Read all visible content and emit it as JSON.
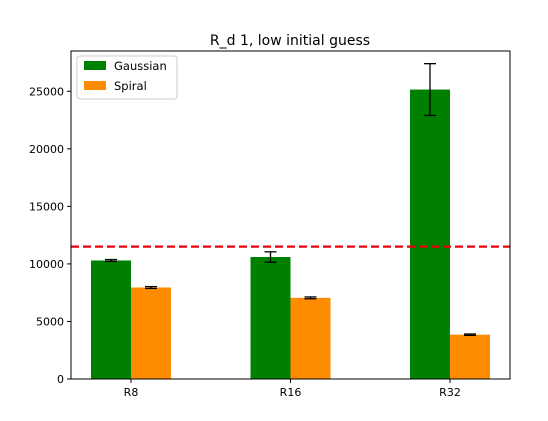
{
  "chart_data": {
    "type": "bar",
    "title": "R_d 1, low initial guess",
    "xlabel": "",
    "ylabel": "",
    "categories": [
      "R8",
      "R16",
      "R32"
    ],
    "series": [
      {
        "name": "Gaussian",
        "color": "#008000",
        "values": [
          10300,
          10600,
          25150
        ],
        "errors": [
          80,
          450,
          2250
        ]
      },
      {
        "name": "Spiral",
        "color": "#ff8c00",
        "values": [
          7950,
          7050,
          3850
        ],
        "errors": [
          80,
          80,
          60
        ]
      }
    ],
    "reference_line": {
      "value": 11500,
      "color": "#e8000b",
      "style": "dashed"
    },
    "ylim": [
      0,
      28500
    ],
    "yticks": [
      0,
      5000,
      10000,
      15000,
      20000,
      25000
    ],
    "grid": false,
    "legend_position": "top-left"
  }
}
